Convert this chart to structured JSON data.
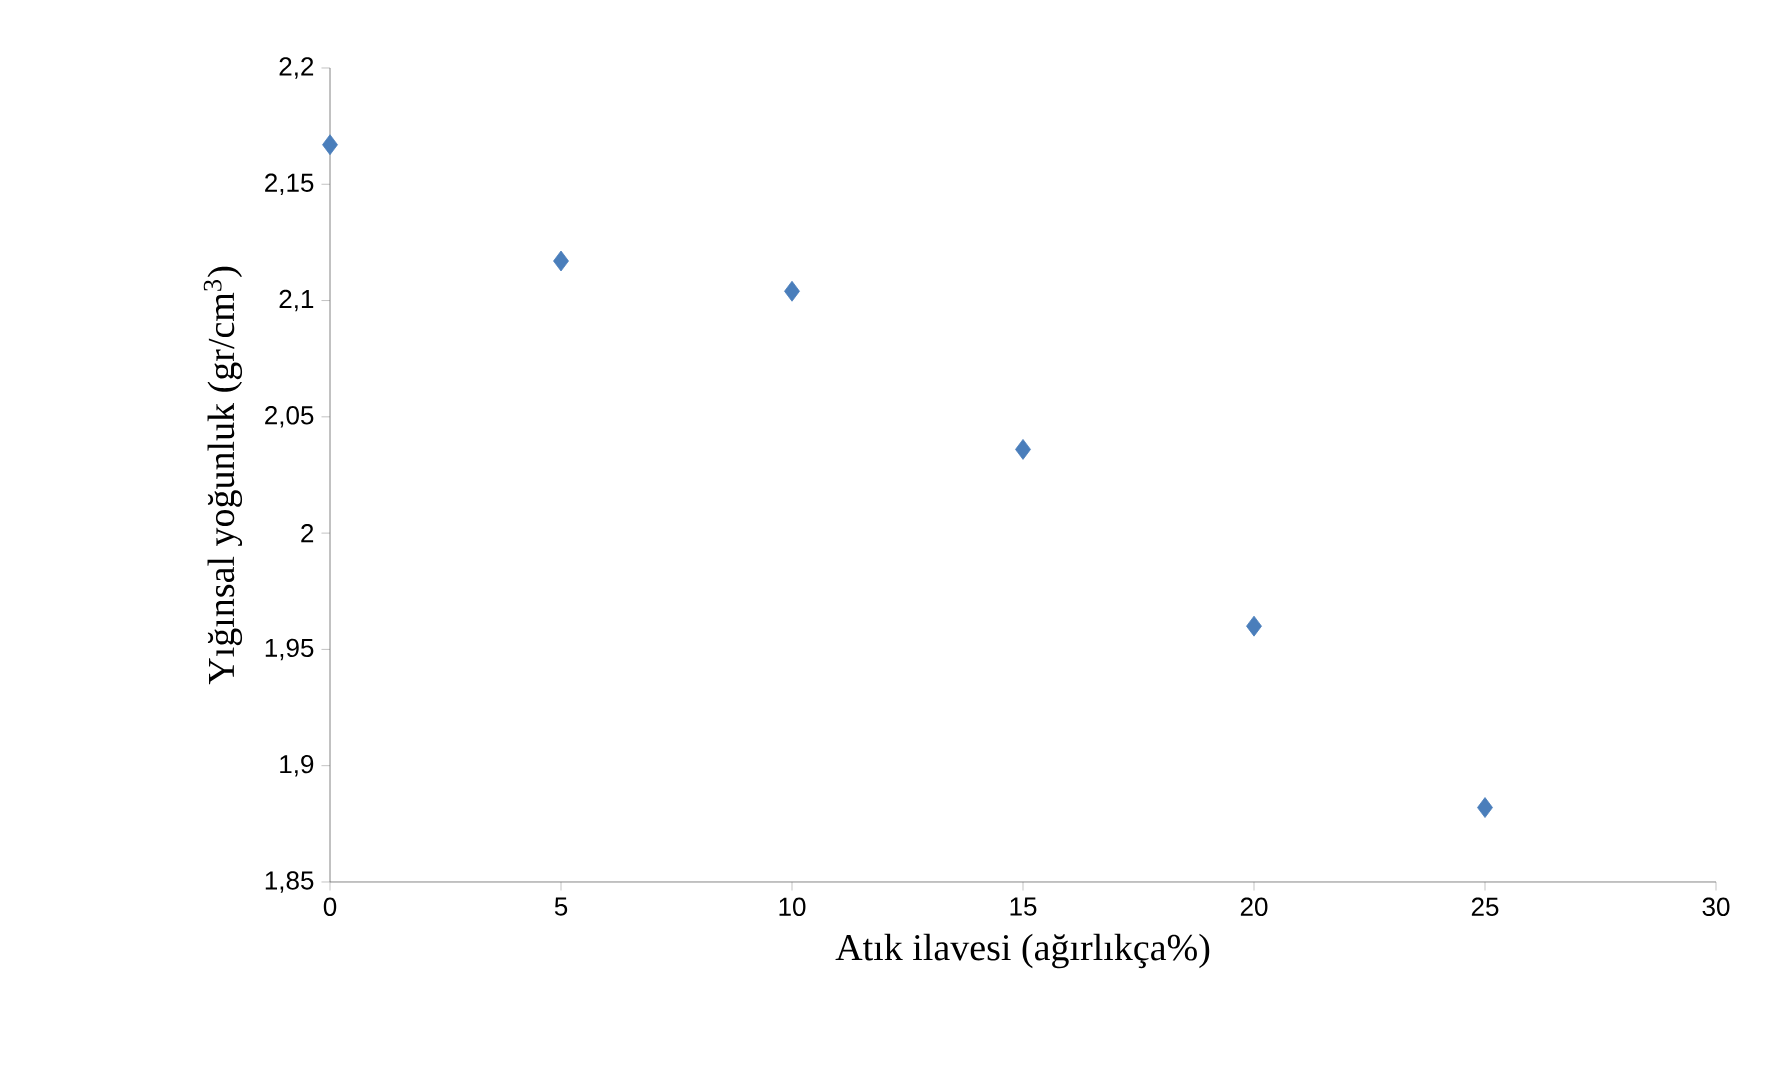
{
  "chart_data": {
    "type": "scatter",
    "xlabel": "Atık ilavesi (ağırlıkça%)",
    "ylabel": "Yığınsal yoğunluk (gr/cm$^{3}$)",
    "x": [
      0,
      5,
      10,
      15,
      20,
      25
    ],
    "series": [
      {
        "color": "#4a7ebb",
        "values": [
          2.167,
          2.117,
          2.104,
          2.036,
          1.96,
          1.882
        ]
      }
    ],
    "xlim": [
      0,
      30
    ],
    "xticks": [
      0,
      5,
      10,
      15,
      20,
      25,
      30
    ],
    "ylim": [
      1.85,
      2.2
    ],
    "yticks": [
      {
        "value": 1.85,
        "label": "1,85"
      },
      {
        "value": 1.9,
        "label": "1,9"
      },
      {
        "value": 1.95,
        "label": "1,95"
      },
      {
        "value": 2,
        "label": "2"
      },
      {
        "value": 2.05,
        "label": "2,05"
      },
      {
        "value": 2.1,
        "label": "2,1"
      },
      {
        "value": 2.15,
        "label": "2,15"
      },
      {
        "value": 2.2,
        "label": "2,2"
      }
    ],
    "marker": "diamond",
    "grid": false
  }
}
